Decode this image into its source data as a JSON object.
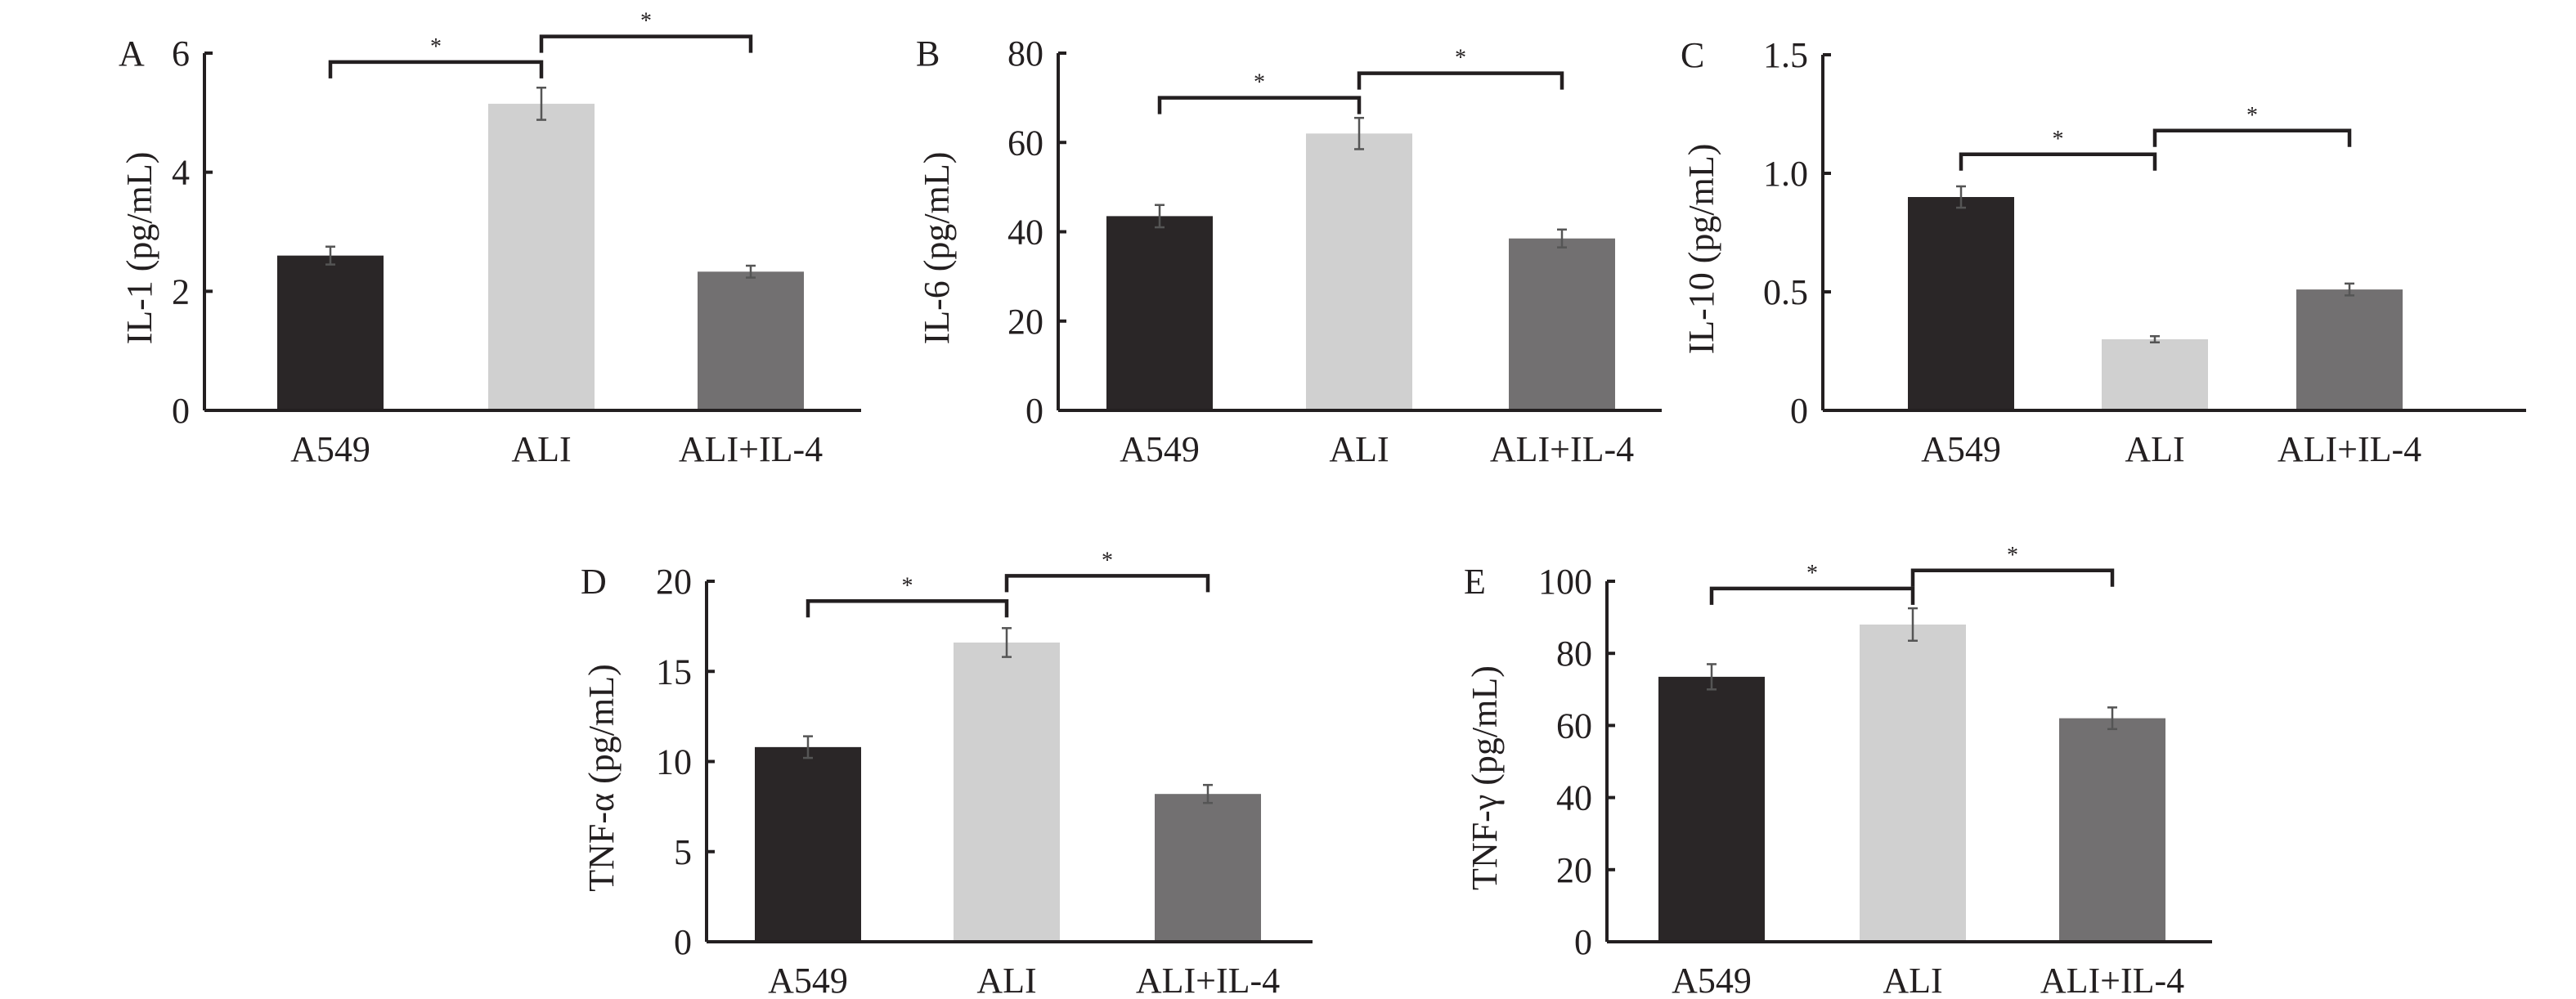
{
  "chart_data": [
    {
      "type": "bar",
      "panel": "A",
      "ylabel": "IL-1 (pg/mL)",
      "categories": [
        "A549",
        "ALI",
        "ALI+IL-4"
      ],
      "values": [
        2.6,
        5.15,
        2.33
      ],
      "errors": [
        0.15,
        0.27,
        0.1
      ],
      "ylim": [
        0,
        6
      ],
      "yticks": [
        "0",
        "2",
        "4",
        "6"
      ],
      "ytick_values": [
        0,
        2,
        4,
        6
      ],
      "significance": [
        {
          "from": 0,
          "to": 1,
          "label": "*",
          "level": 5.85
        },
        {
          "from": 1,
          "to": 2,
          "label": "*",
          "level": 6.28
        }
      ]
    },
    {
      "type": "bar",
      "panel": "B",
      "ylabel": "IL-6 (pg/mL)",
      "categories": [
        "A549",
        "ALI",
        "ALI+IL-4"
      ],
      "values": [
        43.5,
        62,
        38.5
      ],
      "errors": [
        2.5,
        3.5,
        2
      ],
      "ylim": [
        0,
        80
      ],
      "yticks": [
        "0",
        "20",
        "40",
        "60",
        "80"
      ],
      "ytick_values": [
        0,
        20,
        40,
        60,
        80
      ],
      "significance": [
        {
          "from": 0,
          "to": 1,
          "label": "*",
          "level": 70
        },
        {
          "from": 1,
          "to": 2,
          "label": "*",
          "level": 75.5
        }
      ]
    },
    {
      "type": "bar",
      "panel": "C",
      "ylabel": "IL-10 (pg/mL)",
      "categories": [
        "A549",
        "ALI",
        "ALI+IL-4"
      ],
      "values": [
        0.9,
        0.3,
        0.51
      ],
      "errors": [
        0.045,
        0.013,
        0.025
      ],
      "ylim": [
        0,
        1.5
      ],
      "yticks": [
        "0",
        "0.5",
        "1.0",
        "1.5"
      ],
      "ytick_values": [
        0,
        0.5,
        1.0,
        1.5
      ],
      "significance": [
        {
          "from": 0,
          "to": 1,
          "label": "*",
          "level": 1.08
        },
        {
          "from": 1,
          "to": 2,
          "label": "*",
          "level": 1.18
        }
      ]
    },
    {
      "type": "bar",
      "panel": "D",
      "ylabel": "TNF-α (pg/mL)",
      "categories": [
        "A549",
        "ALI",
        "ALI+IL-4"
      ],
      "values": [
        10.8,
        16.6,
        8.2
      ],
      "errors": [
        0.6,
        0.8,
        0.5
      ],
      "ylim": [
        0,
        20
      ],
      "yticks": [
        "0",
        "5",
        "10",
        "15",
        "20"
      ],
      "ytick_values": [
        0,
        5,
        10,
        15,
        20
      ],
      "significance": [
        {
          "from": 0,
          "to": 1,
          "label": "*",
          "level": 18.9
        },
        {
          "from": 1,
          "to": 2,
          "label": "*",
          "level": 20.3
        }
      ]
    },
    {
      "type": "bar",
      "panel": "E",
      "ylabel": "TNF-γ (pg/mL)",
      "categories": [
        "A549",
        "ALI",
        "ALI+IL-4"
      ],
      "values": [
        73.5,
        88,
        62
      ],
      "errors": [
        3.5,
        4.5,
        3
      ],
      "ylim": [
        0,
        100
      ],
      "yticks": [
        "0",
        "20",
        "40",
        "60",
        "80",
        "100"
      ],
      "ytick_values": [
        0,
        20,
        40,
        60,
        80,
        100
      ],
      "significance": [
        {
          "from": 0,
          "to": 1,
          "label": "*",
          "level": 98
        },
        {
          "from": 1,
          "to": 2,
          "label": "*",
          "level": 103
        }
      ]
    }
  ],
  "colors": {
    "bars": [
      "#2a2627",
      "#d0d0d0",
      "#727071"
    ],
    "axis": "#231f20",
    "error": "#555555"
  }
}
